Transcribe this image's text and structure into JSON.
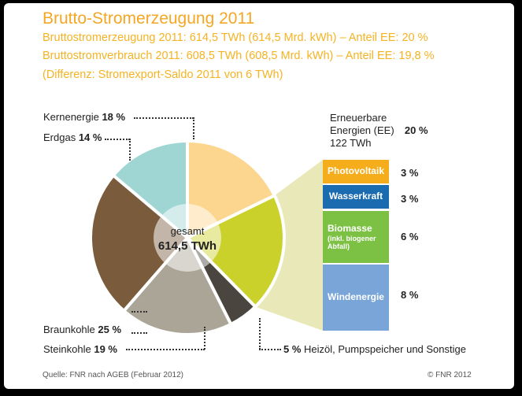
{
  "title": "Brutto-Stromerzeugung 2011",
  "subtitle_lines": [
    "Bruttostromerzeugung 2011: 614,5 TWh (614,5 Mrd. kWh) – Anteil EE: 20 %",
    "Bruttostromverbrauch 2011: 608,5 TWh (608,5 Mrd. kWh) – Anteil EE: 19,8 %",
    "(Differenz: Stromexport-Saldo 2011 von 6 TWh)"
  ],
  "center": {
    "label": "gesamt",
    "value": "614,5 TWh"
  },
  "chart_data": {
    "type": "pie",
    "total": 614.5,
    "unit": "TWh",
    "slices": [
      {
        "name": "Kernenergie",
        "value": 18,
        "label": "18 %",
        "color": "#fcd58e"
      },
      {
        "name": "Erneuerbare Energien (EE)",
        "value": 20,
        "label": "20 %",
        "color": "#c9d12a"
      },
      {
        "name": "Heizöl, Pumpspeicher und Sonstige",
        "value": 5,
        "label": "5 %",
        "color": "#4a463f"
      },
      {
        "name": "Steinkohle",
        "value": 19,
        "label": "19 %",
        "color": "#aba597"
      },
      {
        "name": "Braunkohle",
        "value": 25,
        "label": "25 %",
        "color": "#7a5c3d"
      },
      {
        "name": "Erdgas",
        "value": 14,
        "label": "14 %",
        "color": "#9fd6d3"
      }
    ],
    "ee_breakdown": {
      "heading": [
        "Erneuerbare",
        "Energien (EE)"
      ],
      "heading_pct": "20 %",
      "heading_twh": "122 TWh",
      "items": [
        {
          "name": "Photovoltaik",
          "value": 3,
          "label": "3 %",
          "color": "#f5ad1c"
        },
        {
          "name": "Wasserkraft",
          "value": 3,
          "label": "3 %",
          "color": "#1b6bb0"
        },
        {
          "name_lines": [
            "Biomasse",
            "(inkl. biogener",
            "Abfall)"
          ],
          "value": 6,
          "label": "6 %",
          "color": "#7cc144"
        },
        {
          "name": "Windenergie",
          "value": 8,
          "label": "8 %",
          "color": "#79a5d9"
        }
      ]
    }
  },
  "footer": {
    "source": "Quelle: FNR nach AGEB (Februar 2012)",
    "copyright": "© FNR 2012"
  }
}
